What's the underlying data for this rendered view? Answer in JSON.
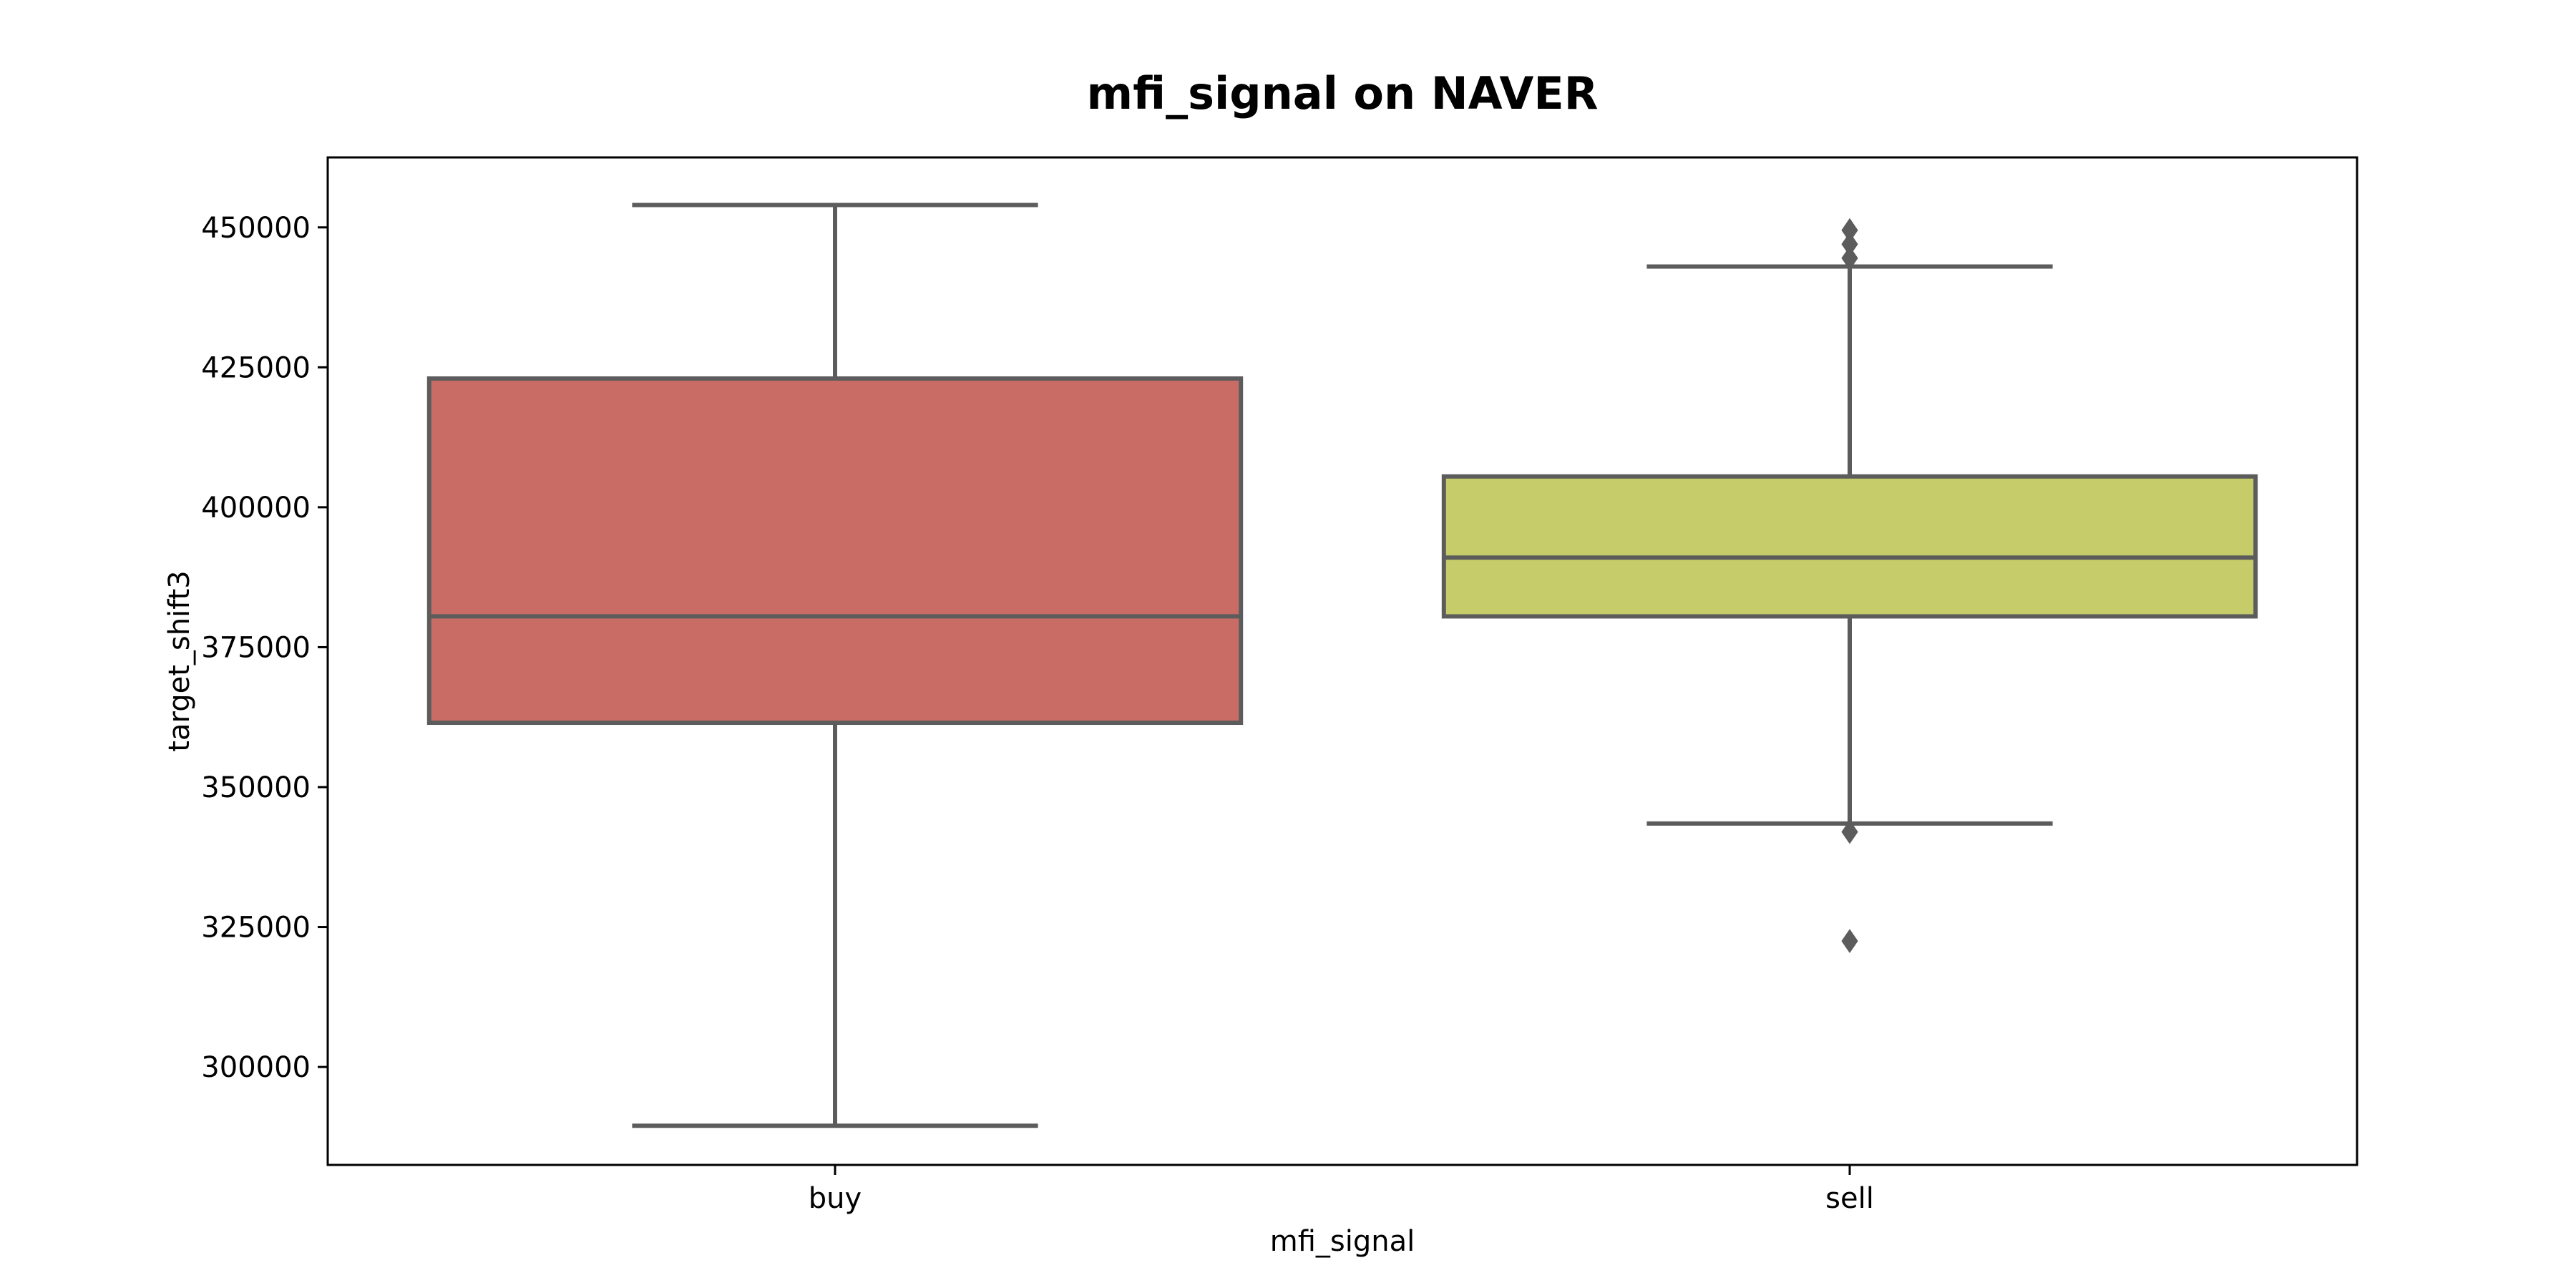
{
  "chart_data": {
    "type": "box",
    "title": "mfi_signal on NAVER",
    "xlabel": "mfi_signal",
    "ylabel": "target_shift3",
    "ylim": [
      282500,
      462500
    ],
    "yticks": [
      300000,
      325000,
      350000,
      375000,
      400000,
      425000,
      450000
    ],
    "categories": [
      "buy",
      "sell"
    ],
    "grid": false,
    "boxes": [
      {
        "category": "buy",
        "color": "#c96c66",
        "whisker_low": 289500,
        "q1": 361500,
        "median": 380500,
        "q3": 423000,
        "whisker_high": 454000,
        "outliers": []
      },
      {
        "category": "sell",
        "color": "#c6cc6a",
        "whisker_low": 343500,
        "q1": 380500,
        "median": 391000,
        "q3": 405500,
        "whisker_high": 443000,
        "outliers": [
          322500,
          342000,
          444500,
          447000,
          449500
        ]
      }
    ],
    "line_color": "#5c5c5c"
  }
}
